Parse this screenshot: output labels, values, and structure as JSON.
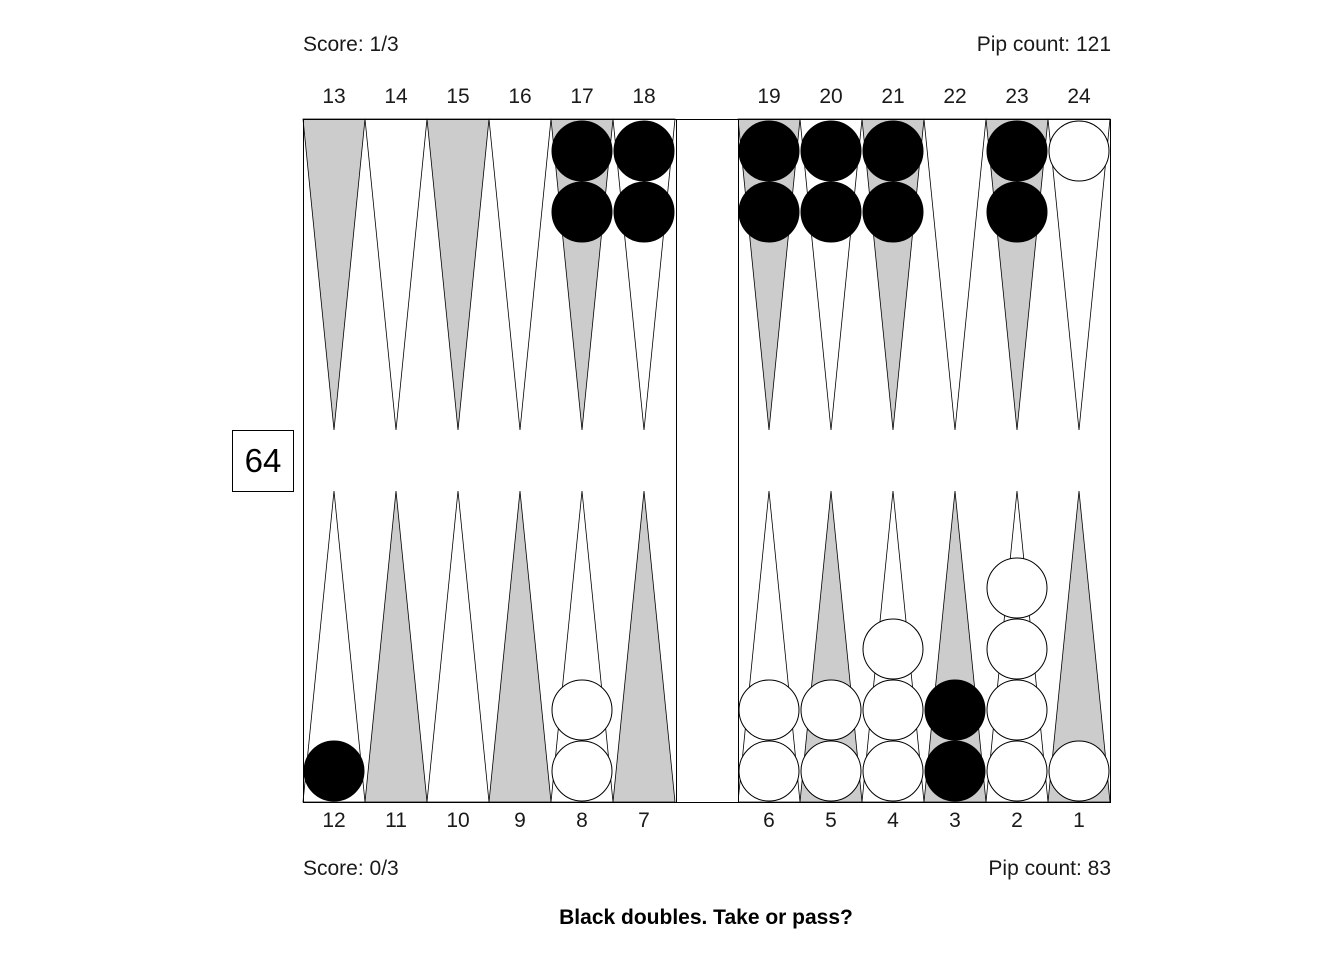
{
  "top_player": {
    "score": "Score: 1/3",
    "pip_count": "Pip count: 121",
    "checker_color": "#000000"
  },
  "bottom_player": {
    "score": "Score: 0/3",
    "pip_count": "Pip count: 83",
    "checker_color": "#ffffff"
  },
  "cube_value": "64",
  "prompt": "Black doubles. Take or pass?",
  "colors": {
    "dark_point": "#cccccc",
    "light_point": "#ffffff",
    "board_border": "#000000",
    "black_checker": "#000000",
    "white_checker": "#ffffff"
  },
  "top_point_labels": [
    "13",
    "14",
    "15",
    "16",
    "17",
    "18",
    "19",
    "20",
    "21",
    "22",
    "23",
    "24"
  ],
  "bottom_point_labels": [
    "12",
    "11",
    "10",
    "9",
    "8",
    "7",
    "6",
    "5",
    "4",
    "3",
    "2",
    "1"
  ],
  "checkers": [
    {
      "point": 17,
      "color": "black",
      "count": 2
    },
    {
      "point": 18,
      "color": "black",
      "count": 2
    },
    {
      "point": 19,
      "color": "black",
      "count": 2
    },
    {
      "point": 20,
      "color": "black",
      "count": 2
    },
    {
      "point": 21,
      "color": "black",
      "count": 2
    },
    {
      "point": 23,
      "color": "black",
      "count": 2
    },
    {
      "point": 24,
      "color": "white",
      "count": 1
    },
    {
      "point": 12,
      "color": "black",
      "count": 1
    },
    {
      "point": 8,
      "color": "white",
      "count": 2
    },
    {
      "point": 6,
      "color": "white",
      "count": 2
    },
    {
      "point": 5,
      "color": "white",
      "count": 2
    },
    {
      "point": 4,
      "color": "white",
      "count": 3
    },
    {
      "point": 3,
      "color": "black",
      "count": 2
    },
    {
      "point": 2,
      "color": "white",
      "count": 4
    },
    {
      "point": 1,
      "color": "white",
      "count": 1
    }
  ]
}
